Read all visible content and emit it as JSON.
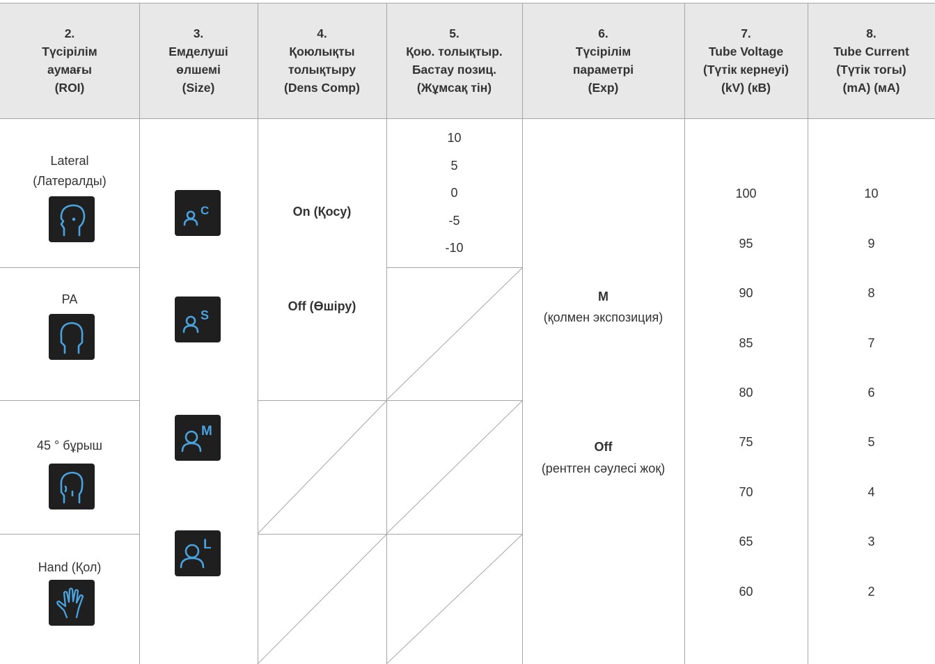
{
  "headers": [
    {
      "num": "2.",
      "lines": [
        "Түсірілім",
        "аумағы",
        "(ROI)"
      ]
    },
    {
      "num": "3.",
      "lines": [
        "Емделуші",
        "өлшемі",
        "(Size)"
      ]
    },
    {
      "num": "4.",
      "lines": [
        "Қоюлықты",
        "толықтыру",
        "(Dens Comp)"
      ]
    },
    {
      "num": "5.",
      "lines": [
        "Қою. толықтыр.",
        "Бастау позиц.",
        "(Жұмсақ тін)"
      ]
    },
    {
      "num": "6.",
      "lines": [
        "Түсірілім",
        "параметрі",
        "(Exp)"
      ]
    },
    {
      "num": "7.",
      "lines": [
        "Tube Voltage",
        "(Түтік кернеуі)",
        "(kV) (кВ)"
      ]
    },
    {
      "num": "8.",
      "lines": [
        "Tube Current",
        "(Түтік тогы)",
        "(mA) (мА)"
      ]
    }
  ],
  "roi": [
    {
      "label": "Lateral",
      "sublabel": "(Латералды)",
      "icon": "lateral-head-icon"
    },
    {
      "label": "PA",
      "sublabel": "",
      "icon": "pa-head-icon"
    },
    {
      "label": "45 ° бұрыш",
      "sublabel": "",
      "icon": "angle-45-head-icon"
    },
    {
      "label": "Hand (Қол)",
      "sublabel": "",
      "icon": "hand-icon"
    }
  ],
  "size": [
    {
      "letter": "C",
      "icon": "patient-size-child-icon"
    },
    {
      "letter": "S",
      "icon": "patient-size-small-icon"
    },
    {
      "letter": "M",
      "icon": "patient-size-medium-icon"
    },
    {
      "letter": "L",
      "icon": "patient-size-large-icon"
    }
  ],
  "dens_comp": [
    "On (Қосу)",
    "Off (Өшіру)"
  ],
  "soft_tissue": [
    "10",
    "5",
    "0",
    "-5",
    "-10"
  ],
  "exposure": [
    {
      "title": "M",
      "desc": "(қолмен экспозиция)"
    },
    {
      "title": "Off",
      "desc": "(рентген сәулесі жоқ)"
    }
  ],
  "tube_voltage": [
    "100",
    "95",
    "90",
    "85",
    "80",
    "75",
    "70",
    "65",
    "60"
  ],
  "tube_current": [
    "10",
    "9",
    "8",
    "7",
    "6",
    "5",
    "4",
    "3",
    "2"
  ],
  "colors": {
    "icon_blue": "#4aa3df",
    "icon_bg": "#1f1f1f",
    "header_bg": "#e8e8e8",
    "grid_line": "#a6a6a6"
  }
}
